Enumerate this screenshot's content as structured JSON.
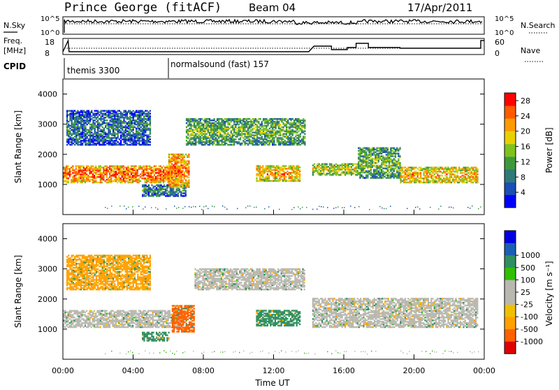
{
  "header": {
    "station": "Prince George (fitACF)",
    "beam": "Beam 04",
    "date": "17/Apr/2011"
  },
  "strip1": {
    "left_label": "N.Sky",
    "left_ticks": [
      "10^5",
      "10^0"
    ],
    "right_ticks": [
      "10^5",
      "10^0"
    ],
    "right_label": "N.Search"
  },
  "strip2": {
    "left_label_1": "Freq.",
    "left_label_2": "[MHz]",
    "left_ticks": [
      "18",
      "8"
    ],
    "right_ticks": [
      "60",
      "0"
    ],
    "right_label": "Nave"
  },
  "cpid": {
    "label": "CPID",
    "segments": [
      {
        "name": "themis 3300",
        "start_hour": 0
      },
      {
        "name": "normalsound (fast) 157",
        "start_hour": 6
      }
    ]
  },
  "colors": {
    "power_scale": [
      "#0000ff",
      "#1a4fb4",
      "#2f7a78",
      "#3c9a3c",
      "#7fc21e",
      "#e8d000",
      "#ff9a00",
      "#ff5a00",
      "#ff0000"
    ],
    "velocity_scale": [
      "#e00000",
      "#ff6000",
      "#ffa000",
      "#f0c000",
      "#b8b8b0",
      "#b8b8b0",
      "#30c000",
      "#2f8f5f",
      "#1a5fb4",
      "#0000e0"
    ]
  },
  "chart_data": [
    {
      "type": "heatmap",
      "name": "power",
      "ylabel": "Slant Range [km]",
      "yticks": [
        "1000",
        "2000",
        "3000",
        "4000"
      ],
      "ylim": [
        0,
        4500
      ],
      "xlim": [
        0,
        24
      ],
      "colorbar": {
        "label": "Power [dB]",
        "ticks": [
          "4",
          "8",
          "12",
          "16",
          "20",
          "24",
          "28"
        ],
        "range": [
          0,
          30
        ]
      },
      "features": [
        {
          "t0": 0,
          "t1": 6.8,
          "r0": 1050,
          "r1": 1600,
          "v": 25
        },
        {
          "t0": 0.2,
          "t1": 5,
          "r0": 2300,
          "r1": 3450,
          "v": 9
        },
        {
          "t0": 4.5,
          "t1": 7,
          "r0": 600,
          "r1": 1000,
          "v": 10
        },
        {
          "t0": 6,
          "t1": 7.2,
          "r0": 900,
          "r1": 2000,
          "v": 24
        },
        {
          "t0": 7,
          "t1": 13.8,
          "r0": 2300,
          "r1": 3200,
          "v": 14
        },
        {
          "t0": 11,
          "t1": 13.5,
          "r0": 1100,
          "r1": 1600,
          "v": 22
        },
        {
          "t0": 14.2,
          "t1": 16.8,
          "r0": 1300,
          "r1": 1700,
          "v": 18
        },
        {
          "t0": 16.8,
          "t1": 19.2,
          "r0": 1200,
          "r1": 2200,
          "v": 14
        },
        {
          "t0": 19.2,
          "t1": 23.6,
          "r0": 1050,
          "r1": 1550,
          "v": 22
        }
      ]
    },
    {
      "type": "heatmap",
      "name": "velocity",
      "ylabel": "Slant Range [km]",
      "yticks": [
        "1000",
        "2000",
        "3000",
        "4000"
      ],
      "ylim": [
        0,
        4500
      ],
      "xlim": [
        0,
        24
      ],
      "xlabel": "Time UT",
      "xticks": [
        "00:00",
        "04:00",
        "08:00",
        "12:00",
        "16:00",
        "20:00",
        "00:00"
      ],
      "colorbar": {
        "label": "Velocity [m s⁻¹]",
        "ticks": [
          "-1000",
          "-500",
          "-100",
          "-25",
          "25",
          "100",
          "500",
          "1000"
        ]
      },
      "features": [
        {
          "t0": 0,
          "t1": 6.8,
          "r0": 1050,
          "r1": 1600,
          "v": 0
        },
        {
          "t0": 0.2,
          "t1": 5,
          "r0": 2300,
          "r1": 3450,
          "v": -150
        },
        {
          "t0": 4.5,
          "t1": 6,
          "r0": 600,
          "r1": 900,
          "v": 150
        },
        {
          "t0": 6.2,
          "t1": 7.5,
          "r0": 900,
          "r1": 1800,
          "v": -900
        },
        {
          "t0": 7.5,
          "t1": 13.8,
          "r0": 2300,
          "r1": 3000,
          "v": 0
        },
        {
          "t0": 11,
          "t1": 13.5,
          "r0": 1100,
          "r1": 1600,
          "v": 400
        },
        {
          "t0": 14.2,
          "t1": 23.6,
          "r0": 1050,
          "r1": 2000,
          "v": 0
        }
      ]
    }
  ]
}
